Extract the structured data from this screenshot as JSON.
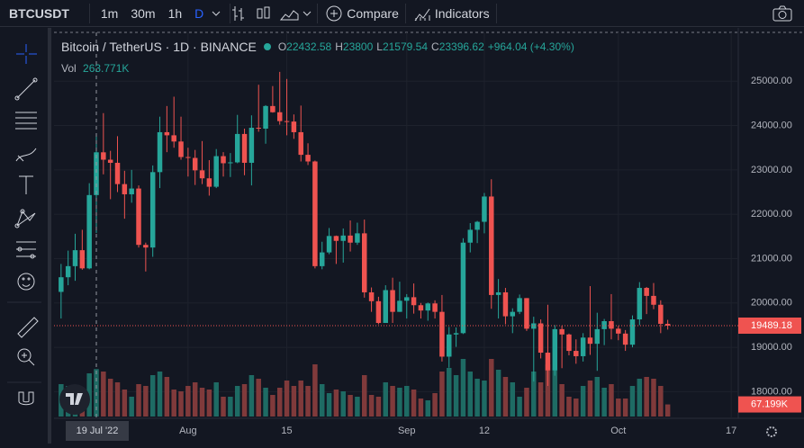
{
  "toolbar": {
    "symbol": "BTCUSDT",
    "intervals": [
      "1m",
      "30m",
      "1h",
      "D"
    ],
    "compare": "Compare",
    "indicators": "Indicators"
  },
  "legend": {
    "title": "Bitcoin / TetherUS · 1D · BINANCE",
    "ohlc_keys": [
      "O",
      "H",
      "L",
      "C"
    ],
    "change": "+964.04 (+4.30%)",
    "volume_key": "Vol"
  },
  "chart_data": {
    "type": "candlestick",
    "x": [
      "2022-07-14",
      "2022-07-15",
      "2022-07-16",
      "2022-07-17",
      "2022-07-18",
      "2022-07-19",
      "2022-07-20",
      "2022-07-21",
      "2022-07-22",
      "2022-07-23",
      "2022-07-24",
      "2022-07-25",
      "2022-07-26",
      "2022-07-27",
      "2022-07-28",
      "2022-07-29",
      "2022-07-30",
      "2022-07-31",
      "2022-08-01",
      "2022-08-02",
      "2022-08-03",
      "2022-08-04",
      "2022-08-05",
      "2022-08-06",
      "2022-08-07",
      "2022-08-08",
      "2022-08-09",
      "2022-08-10",
      "2022-08-11",
      "2022-08-12",
      "2022-08-13",
      "2022-08-14",
      "2022-08-15",
      "2022-08-16",
      "2022-08-17",
      "2022-08-18",
      "2022-08-19",
      "2022-08-20",
      "2022-08-21",
      "2022-08-22",
      "2022-08-23",
      "2022-08-24",
      "2022-08-25",
      "2022-08-26",
      "2022-08-27",
      "2022-08-28",
      "2022-08-29",
      "2022-08-30",
      "2022-08-31",
      "2022-09-01",
      "2022-09-02",
      "2022-09-03",
      "2022-09-04",
      "2022-09-05",
      "2022-09-06",
      "2022-09-07",
      "2022-09-08",
      "2022-09-09",
      "2022-09-10",
      "2022-09-11",
      "2022-09-12",
      "2022-09-13",
      "2022-09-14",
      "2022-09-15",
      "2022-09-16",
      "2022-09-17",
      "2022-09-18",
      "2022-09-19",
      "2022-09-20",
      "2022-09-21",
      "2022-09-22",
      "2022-09-23",
      "2022-09-24",
      "2022-09-25",
      "2022-09-26",
      "2022-09-27",
      "2022-09-28",
      "2022-09-29",
      "2022-09-30",
      "2022-10-01",
      "2022-10-02",
      "2022-10-03",
      "2022-10-04",
      "2022-10-05",
      "2022-10-06",
      "2022-10-07",
      "2022-10-08"
    ],
    "open": [
      20250,
      20580,
      20830,
      21190,
      20780,
      22432.58,
      23396.62,
      23230,
      23160,
      22680,
      22450,
      22580,
      21310,
      21250,
      22950,
      23850,
      23780,
      23640,
      23290,
      23270,
      22990,
      22810,
      22620,
      23310,
      23150,
      23170,
      23810,
      23160,
      23950,
      23930,
      24440,
      24300,
      24100,
      24090,
      23850,
      23340,
      23190,
      20830,
      21140,
      21510,
      21400,
      21520,
      21360,
      21570,
      20240,
      20040,
      19550,
      20290,
      19800,
      20050,
      20130,
      19950,
      19830,
      19990,
      19800,
      18790,
      19290,
      19320,
      21360,
      21650,
      21830,
      22400,
      20180,
      20240,
      19700,
      19800,
      20110,
      19420,
      19540,
      18880,
      18480,
      19410,
      19290,
      18920,
      18800,
      19220,
      19080,
      19410,
      19590,
      19420,
      19310,
      19060,
      19630,
      20340,
      20160,
      19960,
      19530
    ],
    "high": [
      20880,
      21180,
      21560,
      21650,
      22700,
      23800,
      24280,
      23430,
      23760,
      22980,
      23000,
      22650,
      21360,
      23100,
      24200,
      24440,
      24650,
      24200,
      23500,
      23450,
      23650,
      23220,
      23470,
      23400,
      23380,
      24240,
      23930,
      24230,
      24920,
      24460,
      24890,
      25210,
      25050,
      24250,
      24450,
      23600,
      23210,
      21380,
      21690,
      21520,
      21680,
      21860,
      21810,
      21880,
      20350,
      20140,
      20400,
      20570,
      20480,
      20200,
      20440,
      20000,
      20010,
      20060,
      20180,
      19460,
      19450,
      21460,
      21800,
      21850,
      22480,
      22790,
      20540,
      20340,
      19880,
      20190,
      20110,
      19690,
      19630,
      19960,
      19500,
      19490,
      19310,
      19180,
      19320,
      20380,
      19780,
      19640,
      20200,
      19480,
      19390,
      19720,
      20470,
      20360,
      20450,
      20060,
      19620
    ],
    "low": [
      19650,
      20400,
      20500,
      20750,
      20760,
      21579.54,
      22900,
      22340,
      22500,
      21900,
      22260,
      21250,
      20710,
      21040,
      22590,
      23400,
      23500,
      23230,
      22850,
      22660,
      22680,
      22420,
      22590,
      22850,
      22840,
      23150,
      22880,
      22650,
      23860,
      23590,
      24290,
      24020,
      23780,
      23700,
      23190,
      23110,
      20780,
      20760,
      21100,
      20880,
      20910,
      21160,
      21310,
      20120,
      19800,
      19520,
      19550,
      19550,
      19800,
      19650,
      19760,
      19650,
      19600,
      19650,
      18680,
      18540,
      19010,
      19300,
      21140,
      21350,
      21570,
      19870,
      19650,
      19520,
      19320,
      19750,
      19370,
      18230,
      18750,
      18130,
      18360,
      18530,
      18820,
      18630,
      18680,
      18830,
      18470,
      19050,
      19180,
      19160,
      18920,
      19000,
      19500,
      19750,
      19860,
      19320,
      19400
    ],
    "close": [
      20580,
      20830,
      21190,
      20780,
      22432.58,
      23396.62,
      23230,
      23160,
      22680,
      22450,
      22580,
      21310,
      21250,
      22950,
      23850,
      23780,
      23640,
      23290,
      23270,
      22990,
      22810,
      22620,
      23310,
      23150,
      23170,
      23810,
      23160,
      23950,
      23930,
      24440,
      24300,
      24100,
      24090,
      23850,
      23340,
      23190,
      20830,
      21140,
      21510,
      21400,
      21520,
      21360,
      21570,
      20240,
      20040,
      19550,
      20290,
      19800,
      20050,
      20130,
      19950,
      19830,
      19990,
      19800,
      18790,
      19290,
      19320,
      21360,
      21650,
      21830,
      22400,
      20180,
      20240,
      19700,
      19800,
      20110,
      19420,
      19540,
      18880,
      18480,
      19410,
      19290,
      18920,
      18800,
      19220,
      19080,
      19410,
      19590,
      19420,
      19310,
      19060,
      19630,
      20340,
      20160,
      19960,
      19530,
      19489.18
    ],
    "volume": [
      180000,
      170000,
      120000,
      110000,
      240000,
      263771,
      250000,
      210000,
      190000,
      150000,
      110000,
      180000,
      170000,
      230000,
      250000,
      220000,
      150000,
      140000,
      170000,
      190000,
      160000,
      150000,
      190000,
      110000,
      110000,
      170000,
      180000,
      230000,
      210000,
      160000,
      120000,
      160000,
      200000,
      170000,
      200000,
      170000,
      290000,
      180000,
      130000,
      150000,
      140000,
      120000,
      110000,
      230000,
      120000,
      110000,
      190000,
      170000,
      160000,
      170000,
      150000,
      100000,
      90000,
      130000,
      250000,
      270000,
      230000,
      320000,
      250000,
      210000,
      200000,
      320000,
      260000,
      220000,
      190000,
      110000,
      160000,
      250000,
      190000,
      290000,
      270000,
      180000,
      110000,
      100000,
      170000,
      200000,
      220000,
      160000,
      180000,
      100000,
      100000,
      170000,
      210000,
      220000,
      210000,
      170000,
      67199
    ],
    "volume_labels": {
      "legend": "263.771K",
      "last": "67.199K"
    },
    "up_color": "#26a69a",
    "down_color": "#ef5350",
    "up_volume_color": "#1e6b64",
    "down_volume_color": "#803a3b",
    "xlim": [
      "2022-07-13",
      "2022-10-18"
    ],
    "xticks": [
      {
        "value": "2022-08-01",
        "label": "Aug"
      },
      {
        "value": "2022-08-15",
        "label": "15"
      },
      {
        "value": "2022-09-01",
        "label": "Sep"
      },
      {
        "value": "2022-09-12",
        "label": "12"
      },
      {
        "value": "2022-10-01",
        "label": "Oct"
      },
      {
        "value": "2022-10-17",
        "label": "17"
      }
    ],
    "ylim": [
      17400,
      26100
    ],
    "yticks": [
      {
        "value": 18000,
        "label": "18000.00"
      },
      {
        "value": 19000,
        "label": "19000.00"
      },
      {
        "value": 20000,
        "label": "20000.00"
      },
      {
        "value": 21000,
        "label": "21000.00"
      },
      {
        "value": 22000,
        "label": "22000.00"
      },
      {
        "value": 23000,
        "label": "23000.00"
      },
      {
        "value": 24000,
        "label": "24000.00"
      },
      {
        "value": 25000,
        "label": "25000.00"
      }
    ],
    "vlim": [
      0,
      500000
    ],
    "grid": true,
    "crosshair": {
      "x": "2022-07-19",
      "label": "19 Jul '22"
    }
  }
}
